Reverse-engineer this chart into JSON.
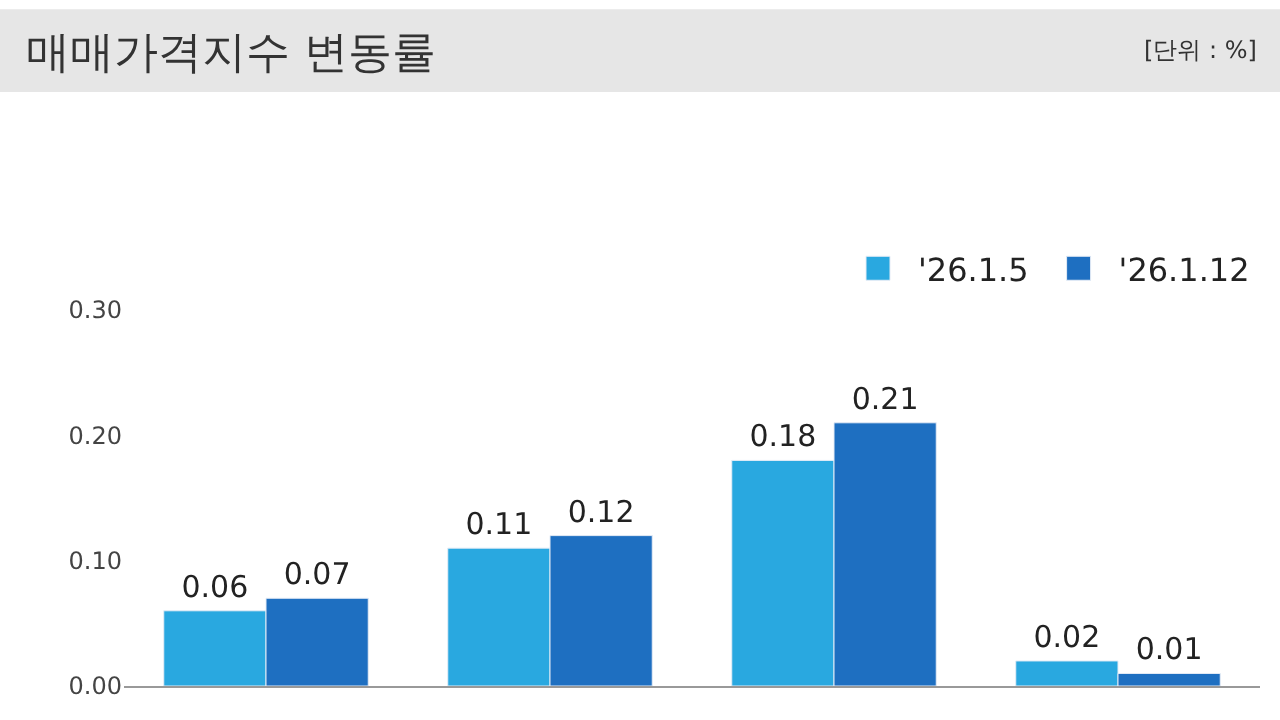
{
  "chart_data": {
    "type": "bar",
    "title": "매매가격지수 변동률",
    "annotations": [
      "[단위 : %]"
    ],
    "categories": [
      null,
      null,
      null,
      null
    ],
    "series": [
      {
        "name": "'26.1.5",
        "color": "#29a8e0",
        "values": [
          0.06,
          0.11,
          0.18,
          0.02
        ]
      },
      {
        "name": "'26.1.12",
        "color": "#1e6fc1",
        "values": [
          0.07,
          0.12,
          0.21,
          0.01
        ]
      }
    ],
    "ylim": [
      0,
      0.3
    ],
    "yticks": [
      {
        "value": 0,
        "label": "0.00"
      },
      {
        "value": 0.1,
        "label": "0.10"
      },
      {
        "value": 0.2,
        "label": "0.20"
      },
      {
        "value": 0.3,
        "label": "0.30"
      }
    ],
    "data_labels": true,
    "legend": "top right"
  }
}
